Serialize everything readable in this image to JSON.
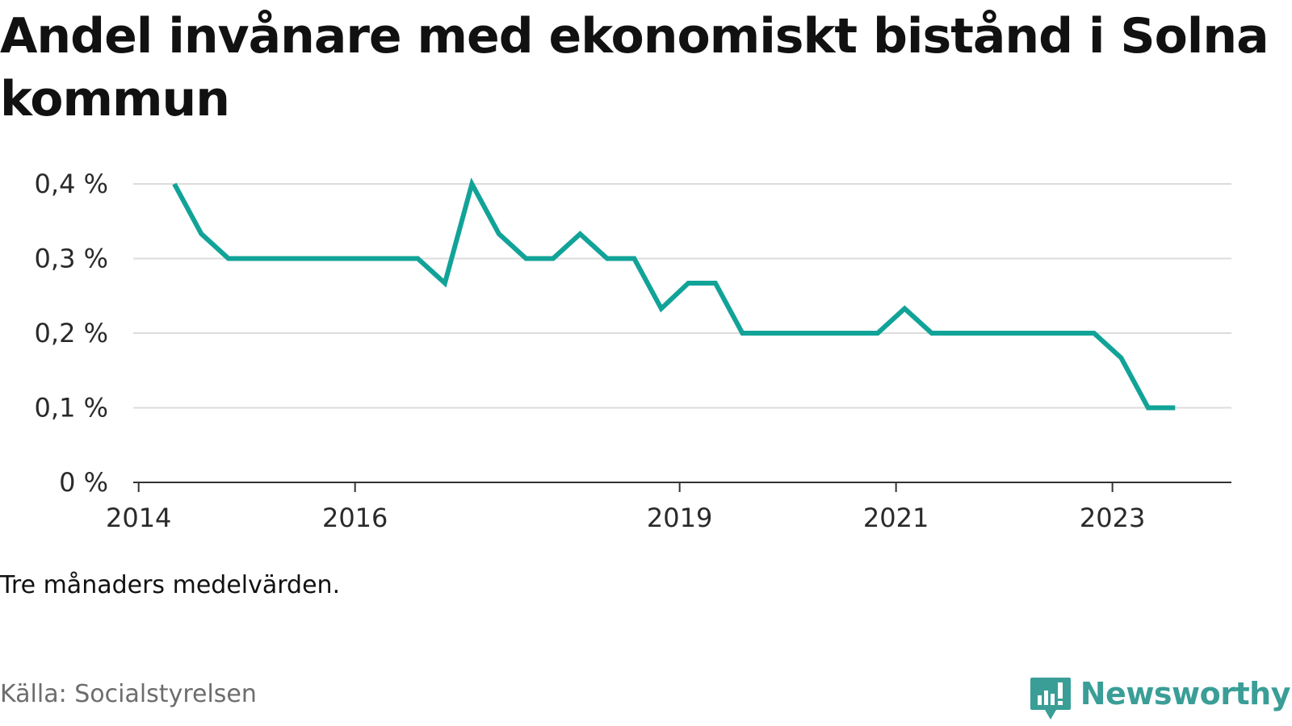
{
  "title": "Andel invånare med ekonomiskt bistånd i Solna kommun",
  "note": "Tre månaders medelvärden.",
  "source": "Källa: Socialstyrelsen",
  "brand": {
    "name": "Newsworthy",
    "icon": "newsworthy-logo-icon",
    "color": "#3a9e97"
  },
  "chart_data": {
    "type": "line",
    "title": "Andel invånare med ekonomiskt bistånd i Solna kommun",
    "xlabel": "",
    "ylabel": "",
    "grid": true,
    "legend": "none",
    "line_color": "#12a398",
    "xlim": [
      2013.95,
      2024.1
    ],
    "ylim": [
      0,
      0.4
    ],
    "x_ticks": [
      {
        "value": 2014,
        "label": "2014"
      },
      {
        "value": 2016,
        "label": "2016"
      },
      {
        "value": 2019,
        "label": "2019"
      },
      {
        "value": 2021,
        "label": "2021"
      },
      {
        "value": 2023,
        "label": "2023"
      }
    ],
    "y_ticks": [
      {
        "value": 0,
        "label": "0 %"
      },
      {
        "value": 0.1,
        "label": "0,1 %"
      },
      {
        "value": 0.2,
        "label": "0,2 %"
      },
      {
        "value": 0.3,
        "label": "0,3 %"
      },
      {
        "value": 0.4,
        "label": "0,4 %"
      }
    ],
    "series": [
      {
        "x": [
          2014.33,
          2014.58,
          2014.83,
          2015.08,
          2015.33,
          2015.58,
          2015.83,
          2016.08,
          2016.33,
          2016.58,
          2016.83,
          2017.08,
          2017.33,
          2017.58,
          2017.83,
          2018.08,
          2018.33,
          2018.58,
          2018.83,
          2019.08,
          2019.33,
          2019.58,
          2019.83,
          2020.08,
          2020.33,
          2020.58,
          2020.83,
          2021.08,
          2021.33,
          2021.58,
          2021.83,
          2022.08,
          2022.33,
          2022.58,
          2022.83,
          2023.08,
          2023.33,
          2023.58
        ],
        "values": [
          0.4,
          0.333,
          0.3,
          0.3,
          0.3,
          0.3,
          0.3,
          0.3,
          0.3,
          0.3,
          0.267,
          0.4,
          0.333,
          0.3,
          0.3,
          0.333,
          0.3,
          0.3,
          0.233,
          0.267,
          0.267,
          0.2,
          0.2,
          0.2,
          0.2,
          0.2,
          0.2,
          0.233,
          0.2,
          0.2,
          0.2,
          0.2,
          0.2,
          0.2,
          0.2,
          0.167,
          0.1,
          0.1
        ]
      }
    ]
  }
}
